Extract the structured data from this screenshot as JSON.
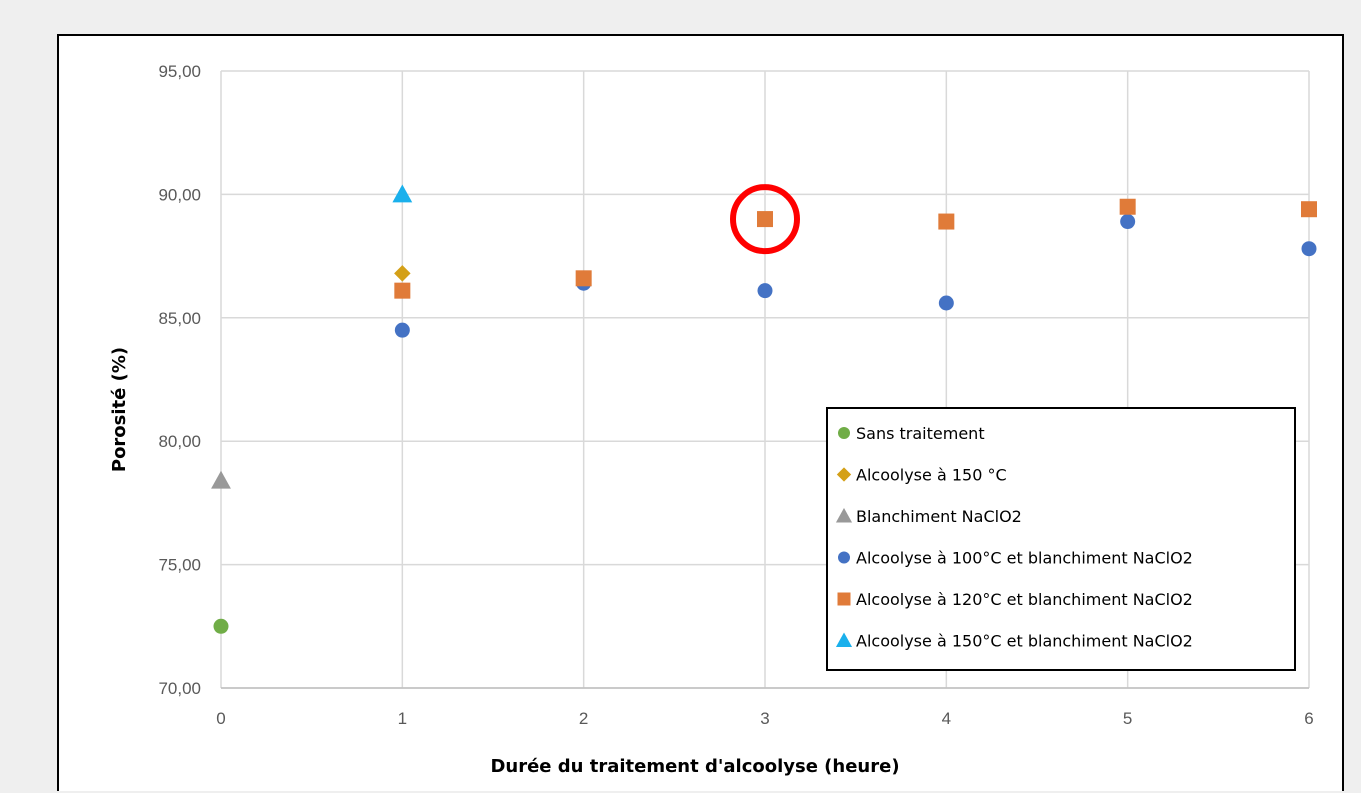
{
  "chart_data": {
    "type": "scatter",
    "title": "",
    "xlabel": "Durée du traitement d'alcoolyse (heure)",
    "ylabel": "Porosité (%)",
    "xlim": [
      0,
      6
    ],
    "ylim": [
      70,
      95
    ],
    "x_ticks": [
      "0",
      "1",
      "2",
      "3",
      "4",
      "5",
      "6"
    ],
    "y_ticks": [
      "70,00",
      "75,00",
      "80,00",
      "85,00",
      "90,00",
      "95,00"
    ],
    "grid": true,
    "legend_position": "bottom-right",
    "series": [
      {
        "name": "Sans traitement",
        "marker": "circle",
        "color": "#70ad47",
        "points": [
          [
            0,
            72.5
          ]
        ]
      },
      {
        "name": "Alcoolyse à 150 °C",
        "marker": "diamond",
        "color": "#d4a017",
        "points": [
          [
            1,
            86.8
          ]
        ]
      },
      {
        "name": "Blanchiment NaClO2",
        "marker": "triangle",
        "color": "#999999",
        "points": [
          [
            0,
            78.4
          ]
        ]
      },
      {
        "name": "Alcoolyse à 100°C et blanchiment NaClO2",
        "marker": "circle",
        "color": "#4472c4",
        "points": [
          [
            1,
            84.5
          ],
          [
            2,
            86.4
          ],
          [
            3,
            86.1
          ],
          [
            4,
            85.6
          ],
          [
            5,
            88.9
          ],
          [
            6,
            87.8
          ]
        ]
      },
      {
        "name": "Alcoolyse à 120°C et blanchiment NaClO2",
        "marker": "square",
        "color": "#e07b39",
        "points": [
          [
            1,
            86.1
          ],
          [
            2,
            86.6
          ],
          [
            3,
            89.0
          ],
          [
            4,
            88.9
          ],
          [
            5,
            89.5
          ],
          [
            6,
            89.4
          ]
        ]
      },
      {
        "name": "Alcoolyse à 150°C et blanchiment NaClO2",
        "marker": "triangle",
        "color": "#1ab0ec",
        "points": [
          [
            1,
            90.0
          ]
        ]
      }
    ],
    "annotations": [
      {
        "type": "circle-highlight",
        "color": "#ff0000",
        "x": 3,
        "y": 89.0
      }
    ]
  }
}
